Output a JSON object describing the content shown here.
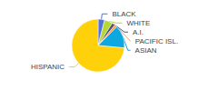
{
  "chart_data": {
    "type": "pie",
    "categories": [
      "BLACK",
      "WHITE",
      "A.I.",
      "PACIFIC ISL.",
      "ASIAN",
      "HISPANIC"
    ],
    "values": [
      4,
      5,
      2,
      1.5,
      14,
      73.5
    ]
  }
}
